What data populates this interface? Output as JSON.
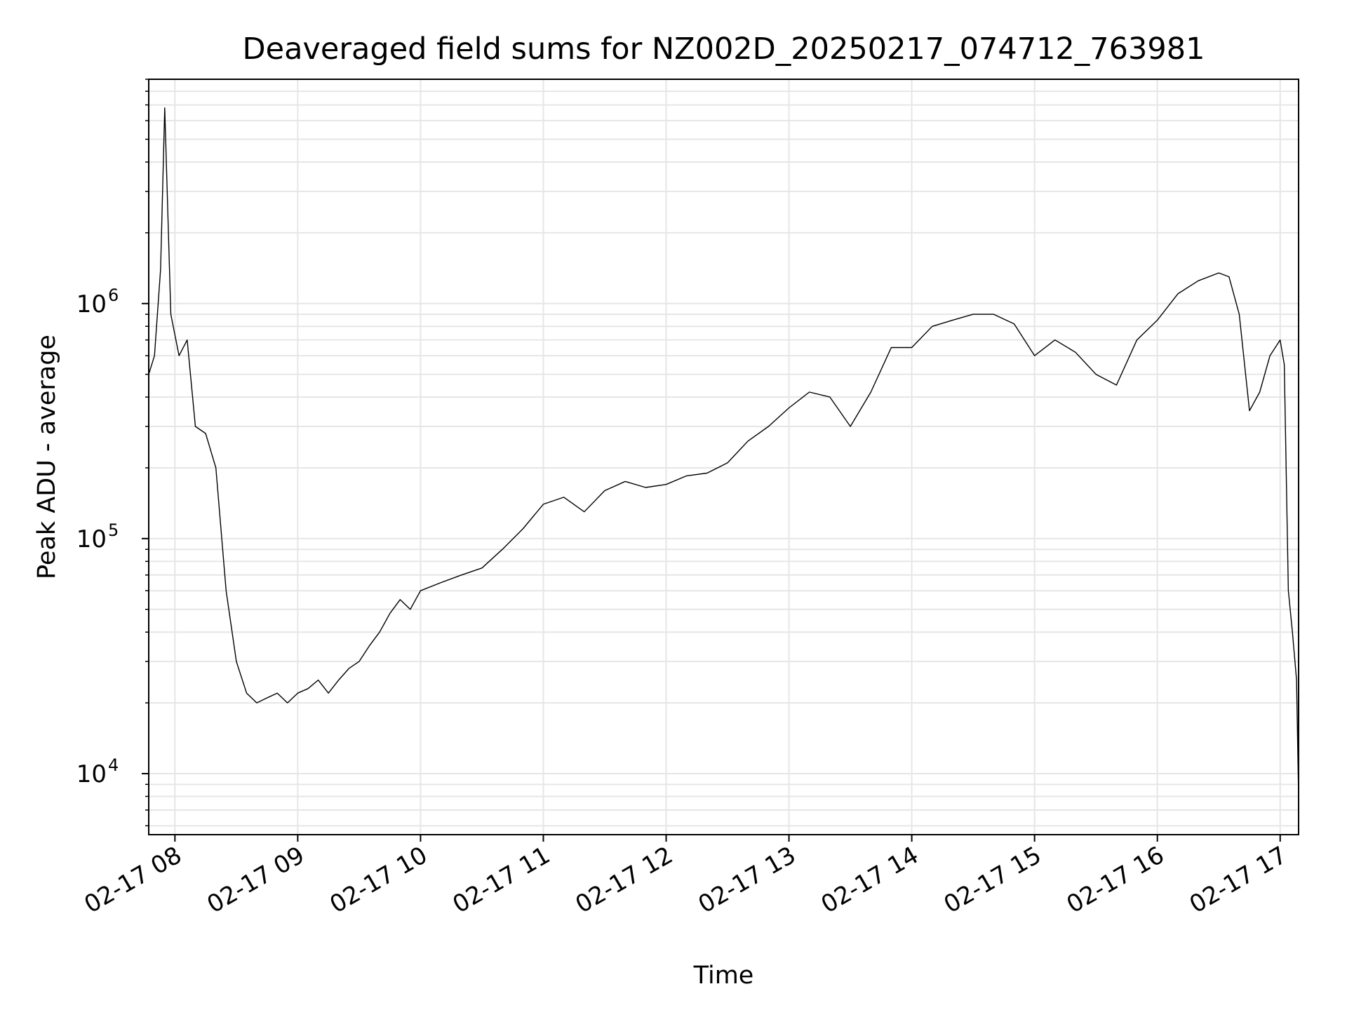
{
  "chart_data": {
    "type": "line",
    "title": "Deaveraged field sums for NZ002D_20250217_074712_763981",
    "xlabel": "Time",
    "ylabel": "Peak ADU - average",
    "yscale": "log",
    "xlim": [
      "2025-02-17T07:47:12",
      "2025-02-17T17:09:00"
    ],
    "ylim": [
      5500,
      9000000
    ],
    "grid": true,
    "x_ticks": [
      "02-17 08",
      "02-17 09",
      "02-17 10",
      "02-17 11",
      "02-17 12",
      "02-17 13",
      "02-17 14",
      "02-17 15",
      "02-17 16",
      "02-17 17"
    ],
    "x_tick_times": [
      "2025-02-17T08:00:00",
      "2025-02-17T09:00:00",
      "2025-02-17T10:00:00",
      "2025-02-17T11:00:00",
      "2025-02-17T12:00:00",
      "2025-02-17T13:00:00",
      "2025-02-17T14:00:00",
      "2025-02-17T15:00:00",
      "2025-02-17T16:00:00",
      "2025-02-17T17:00:00"
    ],
    "y_ticks": [
      {
        "value": 10000,
        "base": "10",
        "exp": "4"
      },
      {
        "value": 100000,
        "base": "10",
        "exp": "5"
      },
      {
        "value": 1000000,
        "base": "10",
        "exp": "6"
      }
    ],
    "series": [
      {
        "color": "#000000",
        "x": [
          "2025-02-17T07:47:12",
          "2025-02-17T07:50:00",
          "2025-02-17T07:53:00",
          "2025-02-17T07:55:00",
          "2025-02-17T07:58:00",
          "2025-02-17T08:02:00",
          "2025-02-17T08:06:00",
          "2025-02-17T08:10:00",
          "2025-02-17T08:15:00",
          "2025-02-17T08:20:00",
          "2025-02-17T08:25:00",
          "2025-02-17T08:30:00",
          "2025-02-17T08:35:00",
          "2025-02-17T08:40:00",
          "2025-02-17T08:45:00",
          "2025-02-17T08:50:00",
          "2025-02-17T08:55:00",
          "2025-02-17T09:00:00",
          "2025-02-17T09:05:00",
          "2025-02-17T09:10:00",
          "2025-02-17T09:15:00",
          "2025-02-17T09:20:00",
          "2025-02-17T09:25:00",
          "2025-02-17T09:30:00",
          "2025-02-17T09:35:00",
          "2025-02-17T09:40:00",
          "2025-02-17T09:45:00",
          "2025-02-17T09:50:00",
          "2025-02-17T09:55:00",
          "2025-02-17T10:00:00",
          "2025-02-17T10:10:00",
          "2025-02-17T10:20:00",
          "2025-02-17T10:30:00",
          "2025-02-17T10:40:00",
          "2025-02-17T10:50:00",
          "2025-02-17T11:00:00",
          "2025-02-17T11:10:00",
          "2025-02-17T11:20:00",
          "2025-02-17T11:30:00",
          "2025-02-17T11:40:00",
          "2025-02-17T11:50:00",
          "2025-02-17T12:00:00",
          "2025-02-17T12:10:00",
          "2025-02-17T12:20:00",
          "2025-02-17T12:30:00",
          "2025-02-17T12:40:00",
          "2025-02-17T12:50:00",
          "2025-02-17T13:00:00",
          "2025-02-17T13:10:00",
          "2025-02-17T13:20:00",
          "2025-02-17T13:30:00",
          "2025-02-17T13:40:00",
          "2025-02-17T13:50:00",
          "2025-02-17T14:00:00",
          "2025-02-17T14:10:00",
          "2025-02-17T14:20:00",
          "2025-02-17T14:30:00",
          "2025-02-17T14:40:00",
          "2025-02-17T14:50:00",
          "2025-02-17T15:00:00",
          "2025-02-17T15:10:00",
          "2025-02-17T15:20:00",
          "2025-02-17T15:30:00",
          "2025-02-17T15:40:00",
          "2025-02-17T15:50:00",
          "2025-02-17T16:00:00",
          "2025-02-17T16:10:00",
          "2025-02-17T16:20:00",
          "2025-02-17T16:30:00",
          "2025-02-17T16:35:00",
          "2025-02-17T16:40:00",
          "2025-02-17T16:45:00",
          "2025-02-17T16:50:00",
          "2025-02-17T16:55:00",
          "2025-02-17T17:00:00",
          "2025-02-17T17:02:00",
          "2025-02-17T17:04:00",
          "2025-02-17T17:06:00",
          "2025-02-17T17:08:00",
          "2025-02-17T17:09:00"
        ],
        "y": [
          500000,
          600000,
          1400000,
          6800000,
          900000,
          600000,
          700000,
          300000,
          280000,
          200000,
          60000,
          30000,
          22000,
          20000,
          21000,
          22000,
          20000,
          22000,
          23000,
          25000,
          22000,
          25000,
          28000,
          30000,
          35000,
          40000,
          48000,
          55000,
          50000,
          60000,
          65000,
          70000,
          75000,
          90000,
          110000,
          140000,
          150000,
          130000,
          160000,
          175000,
          165000,
          170000,
          185000,
          190000,
          210000,
          260000,
          300000,
          360000,
          420000,
          400000,
          300000,
          420000,
          650000,
          650000,
          800000,
          850000,
          900000,
          900000,
          820000,
          600000,
          700000,
          620000,
          500000,
          450000,
          700000,
          850000,
          1100000,
          1250000,
          1350000,
          1300000,
          900000,
          350000,
          420000,
          600000,
          700000,
          550000,
          60000,
          40000,
          25000,
          8000
        ]
      }
    ]
  }
}
